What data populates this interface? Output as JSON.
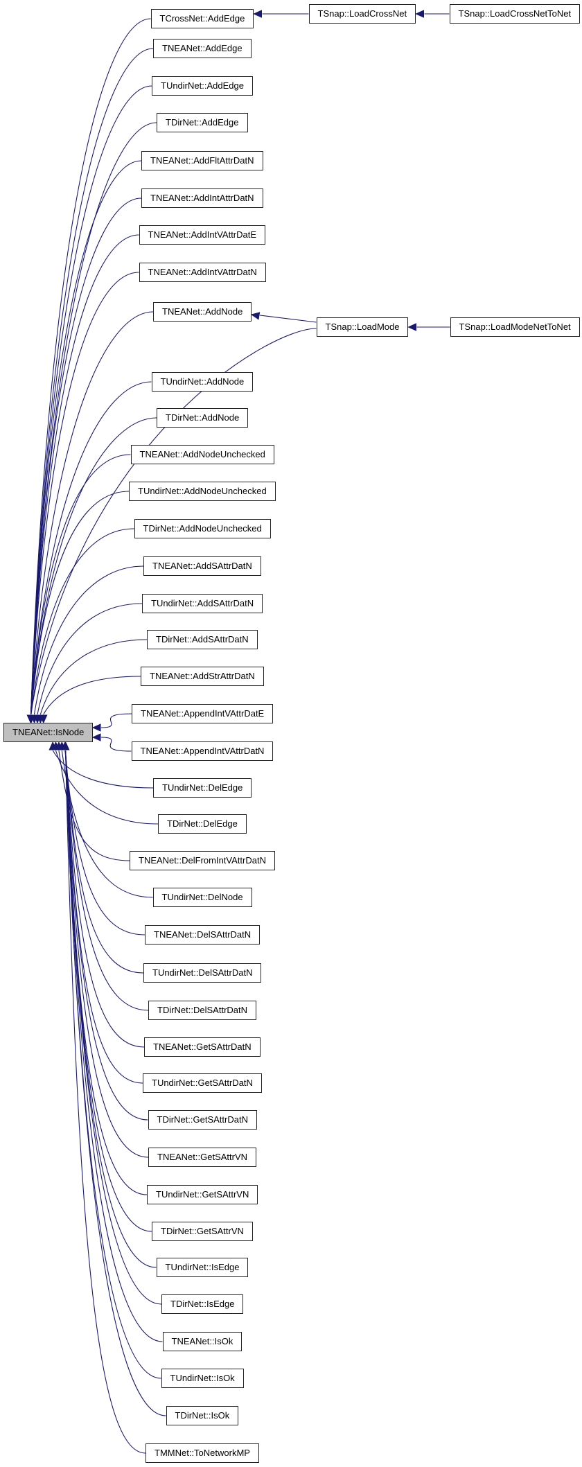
{
  "focus_node": "TNEANet::IsNode",
  "callers": [
    "TCrossNet::AddEdge",
    "TNEANet::AddEdge",
    "TUndirNet::AddEdge",
    "TDirNet::AddEdge",
    "TNEANet::AddFltAttrDatN",
    "TNEANet::AddIntAttrDatN",
    "TNEANet::AddIntVAttrDatE",
    "TNEANet::AddIntVAttrDatN",
    "TNEANet::AddNode",
    "TUndirNet::AddNode",
    "TDirNet::AddNode",
    "TNEANet::AddNodeUnchecked",
    "TUndirNet::AddNodeUnchecked",
    "TDirNet::AddNodeUnchecked",
    "TNEANet::AddSAttrDatN",
    "TUndirNet::AddSAttrDatN",
    "TDirNet::AddSAttrDatN",
    "TNEANet::AddStrAttrDatN",
    "TNEANet::AppendIntVAttrDatE",
    "TNEANet::AppendIntVAttrDatN",
    "TUndirNet::DelEdge",
    "TDirNet::DelEdge",
    "TNEANet::DelFromIntVAttrDatN",
    "TUndirNet::DelNode",
    "TNEANet::DelSAttrDatN",
    "TUndirNet::DelSAttrDatN",
    "TDirNet::DelSAttrDatN",
    "TNEANet::GetSAttrDatN",
    "TUndirNet::GetSAttrDatN",
    "TDirNet::GetSAttrDatN",
    "TNEANet::GetSAttrVN",
    "TUndirNet::GetSAttrVN",
    "TDirNet::GetSAttrVN",
    "TUndirNet::IsEdge",
    "TDirNet::IsEdge",
    "TNEANet::IsOk",
    "TUndirNet::IsOk",
    "TDirNet::IsOk",
    "TMMNet::ToNetworkMP"
  ],
  "secondary": {
    "load_cross_net": "TSnap::LoadCrossNet",
    "load_cross_net_to_net": "TSnap::LoadCrossNetToNet",
    "load_mode": "TSnap::LoadMode",
    "load_mode_net_to_net": "TSnap::LoadModeNetToNet"
  },
  "colors": {
    "edge": "#191970",
    "focus_fill": "#bfbfbf",
    "node_border": "#222222"
  }
}
